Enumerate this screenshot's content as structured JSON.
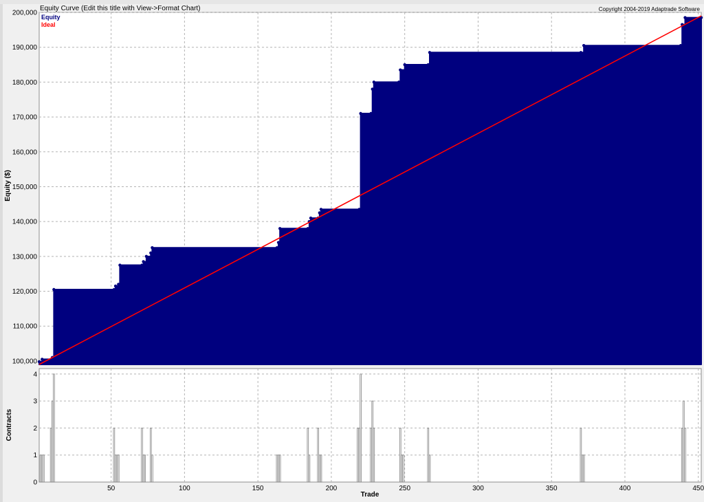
{
  "chart_title": "Equity Curve (Edit this title with View->Format Chart)",
  "copyright": "Copyright 2004-2019 Adaptrade Software",
  "colors": {
    "equity": "#00007f",
    "ideal": "#ff0000",
    "contracts": "#808080",
    "grid": "#b4b4b4"
  },
  "chart_data": [
    {
      "type": "area",
      "name": "equity-chart",
      "ylabel": "Equity ($)",
      "xlim": [
        1,
        452
      ],
      "ylim": [
        99000,
        200000
      ],
      "yticks": [
        100000,
        110000,
        120000,
        130000,
        140000,
        150000,
        160000,
        170000,
        180000,
        190000,
        200000
      ],
      "ytick_labels": [
        "100,000",
        "110,000",
        "120,000",
        "130,000",
        "140,000",
        "150,000",
        "160,000",
        "170,000",
        "180,000",
        "190,000",
        "200,000"
      ],
      "xticks": [
        50,
        100,
        150,
        200,
        250,
        300,
        350,
        400,
        450
      ],
      "grid": true,
      "legend": {
        "position": "top-left",
        "entries": [
          "Equity",
          "Ideal"
        ]
      },
      "series": [
        {
          "name": "Equity",
          "kind": "step-area",
          "points": [
            [
              1,
              99800
            ],
            [
              3,
              100500
            ],
            [
              10,
              101000
            ],
            [
              11,
              120500
            ],
            [
              52,
              120500
            ],
            [
              53,
              121500
            ],
            [
              55,
              122000
            ],
            [
              56,
              127500
            ],
            [
              71,
              127500
            ],
            [
              72,
              128500
            ],
            [
              74,
              130000
            ],
            [
              77,
              131000
            ],
            [
              78,
              132500
            ],
            [
              163,
              132500
            ],
            [
              164,
              134000
            ],
            [
              165,
              138000
            ],
            [
              184,
              138000
            ],
            [
              185,
              140000
            ],
            [
              186,
              141000
            ],
            [
              191,
              141000
            ],
            [
              192,
              142500
            ],
            [
              193,
              143500
            ],
            [
              219,
              143500
            ],
            [
              220,
              171000
            ],
            [
              227,
              171000
            ],
            [
              228,
              178000
            ],
            [
              229,
              180000
            ],
            [
              246,
              180000
            ],
            [
              247,
              183500
            ],
            [
              250,
              185000
            ],
            [
              266,
              185000
            ],
            [
              267,
              188500
            ],
            [
              370,
              188500
            ],
            [
              372,
              190500
            ],
            [
              438,
              190500
            ],
            [
              439,
              196500
            ],
            [
              441,
              198500
            ],
            [
              452,
              198500
            ]
          ]
        },
        {
          "name": "Ideal",
          "kind": "line",
          "points": [
            [
              1,
              99000
            ],
            [
              452,
              199000
            ]
          ]
        }
      ]
    },
    {
      "type": "bar",
      "name": "contracts-chart",
      "xlabel": "Trade",
      "ylabel": "Contracts",
      "xlim": [
        1,
        452
      ],
      "ylim": [
        0,
        4.2
      ],
      "yticks": [
        0,
        1,
        2,
        3,
        4
      ],
      "xticks": [
        50,
        100,
        150,
        200,
        250,
        300,
        350,
        400,
        450
      ],
      "grid": true,
      "bars": [
        [
          2,
          1
        ],
        [
          3,
          1
        ],
        [
          4,
          1
        ],
        [
          9,
          2
        ],
        [
          10,
          3
        ],
        [
          11,
          4
        ],
        [
          52,
          2
        ],
        [
          53,
          1
        ],
        [
          54,
          1
        ],
        [
          55,
          1
        ],
        [
          71,
          2
        ],
        [
          72,
          1
        ],
        [
          73,
          1
        ],
        [
          77,
          2
        ],
        [
          78,
          1
        ],
        [
          163,
          1
        ],
        [
          164,
          1
        ],
        [
          165,
          1
        ],
        [
          184,
          2
        ],
        [
          185,
          1
        ],
        [
          191,
          2
        ],
        [
          192,
          1
        ],
        [
          193,
          1
        ],
        [
          218,
          2
        ],
        [
          219,
          2
        ],
        [
          220,
          4
        ],
        [
          227,
          2
        ],
        [
          228,
          3
        ],
        [
          229,
          2
        ],
        [
          247,
          2
        ],
        [
          248,
          1
        ],
        [
          249,
          1
        ],
        [
          266,
          2
        ],
        [
          267,
          1
        ],
        [
          370,
          2
        ],
        [
          371,
          1
        ],
        [
          372,
          1
        ],
        [
          439,
          2
        ],
        [
          440,
          3
        ],
        [
          441,
          2
        ]
      ]
    }
  ]
}
